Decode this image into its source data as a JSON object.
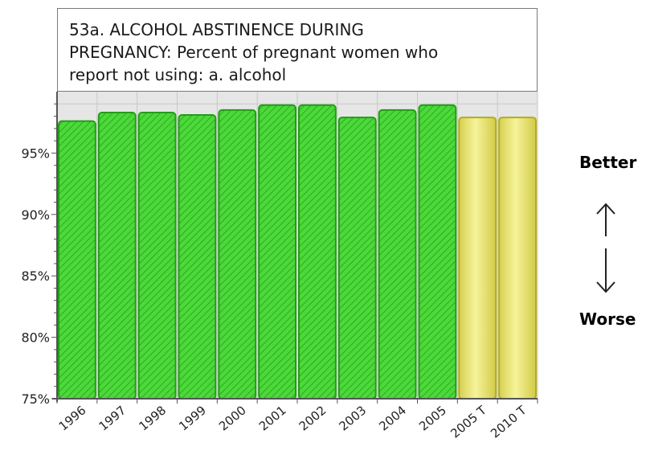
{
  "chart_data": {
    "type": "bar",
    "title": "53a. ALCOHOL ABSTINENCE DURING PREGNANCY: Percent of pregnant women who report not using: a. alcohol",
    "title_lines": [
      "53a. ALCOHOL ABSTINENCE DURING",
      "PREGNANCY: Percent of pregnant women who",
      "report not using: a. alcohol"
    ],
    "categories": [
      "1996",
      "1997",
      "1998",
      "1999",
      "2000",
      "2001",
      "2002",
      "2003",
      "2004",
      "2005",
      "2005 T",
      "2010 T"
    ],
    "values": [
      97.6,
      98.3,
      98.3,
      98.1,
      98.5,
      98.9,
      98.9,
      97.9,
      98.5,
      98.9,
      97.9,
      97.9
    ],
    "kinds": [
      "actual",
      "actual",
      "actual",
      "actual",
      "actual",
      "actual",
      "actual",
      "actual",
      "actual",
      "actual",
      "target",
      "target"
    ],
    "ylim": [
      75,
      100
    ],
    "yticks": [
      75,
      80,
      85,
      90,
      95
    ],
    "ytick_labels": [
      "75%",
      "80%",
      "85%",
      "90%",
      "95%"
    ],
    "xlabel": "",
    "ylabel": "",
    "grid": true,
    "colors": {
      "actual_fill": "#4cd93a",
      "actual_stroke": "#239c18",
      "target_fill": "#eeea70",
      "target_stroke": "#b4ad1e",
      "plot_background": "#e6e6e6",
      "grid": "#c8c8c8"
    }
  },
  "legend_side": {
    "better_label": "Better",
    "worse_label": "Worse",
    "up_icon": "up-arrow-icon",
    "down_icon": "down-arrow-icon"
  }
}
